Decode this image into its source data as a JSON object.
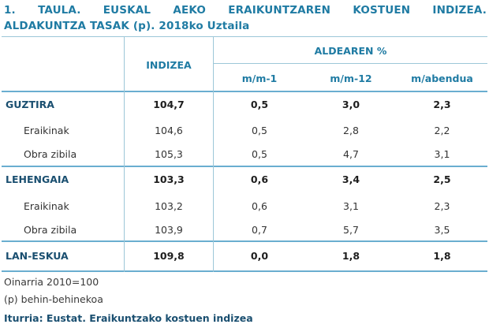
{
  "title": {
    "line1": "1. TAULA. EUSKAL AEKO  ERAIKUNTZAREN KOSTUEN INDIZEA.",
    "line2": "ALDAKUNTZA TASAK (p). 2018ko Uztaila"
  },
  "headers": {
    "index": "INDIZEA",
    "group": "ALDEAREN %",
    "cols": [
      "m/m-1",
      "m/m-12",
      "m/abendua"
    ]
  },
  "rows": [
    {
      "label": "GUZTIRA",
      "type": "group",
      "values": [
        "104,7",
        "0,5",
        "3,0",
        "2,3"
      ]
    },
    {
      "label": "Eraikinak",
      "type": "sub",
      "values": [
        "104,6",
        "0,5",
        "2,8",
        "2,2"
      ]
    },
    {
      "label": "Obra zibila",
      "type": "sub",
      "values": [
        "105,3",
        "0,5",
        "4,7",
        "3,1"
      ]
    },
    {
      "label": "LEHENGAIA",
      "type": "group",
      "values": [
        "103,3",
        "0,6",
        "3,4",
        "2,5"
      ]
    },
    {
      "label": "Eraikinak",
      "type": "sub",
      "values": [
        "103,2",
        "0,6",
        "3,1",
        "2,3"
      ]
    },
    {
      "label": "Obra zibila",
      "type": "sub",
      "values": [
        "103,9",
        "0,7",
        "5,7",
        "3,5"
      ]
    },
    {
      "label": "LAN-ESKUA",
      "type": "group",
      "values": [
        "109,8",
        "0,0",
        "1,8",
        "1,8"
      ]
    }
  ],
  "notes": [
    "Oinarria 2010=100",
    "(p) behin-behinekoa"
  ],
  "source": "Iturria: Eustat. Eraikuntzako kostuen indizea"
}
